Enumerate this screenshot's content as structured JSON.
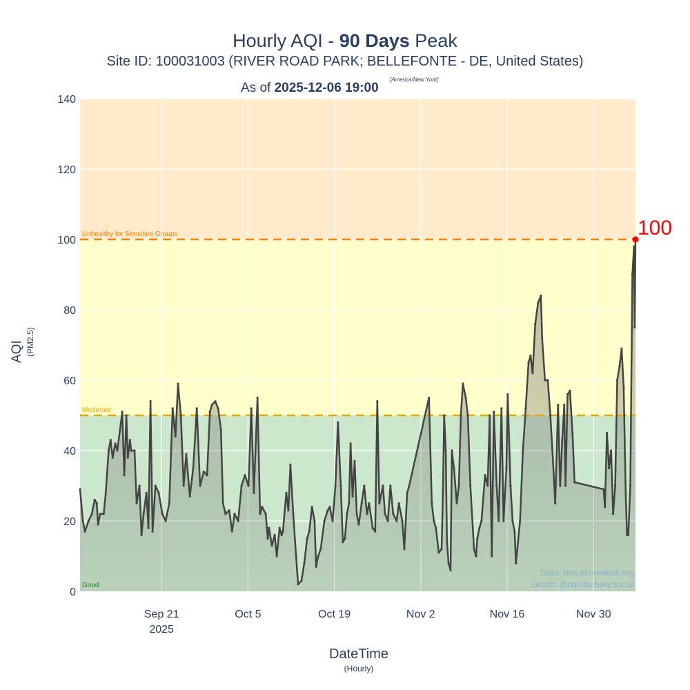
{
  "title": {
    "prefix": "Hourly AQI - ",
    "bold": "90 Days",
    "suffix": " Peak"
  },
  "subtitle": "Site ID: 100031003 (RIVER ROAD PARK; BELLEFONTE - DE, United States)",
  "as_of": {
    "prefix": "As of ",
    "datetime": "2025-12-06 19:00",
    "timezone": "[America/New York]"
  },
  "credits": {
    "data": "Data: files.airnowtech.org",
    "graph": "Graph: @aqiobs.bsky.social"
  },
  "colors": {
    "line": "#444444",
    "good_band": "#cce8cc",
    "moderate_band": "#ffffcc",
    "usg_band": "#ffebcc",
    "moderate_line": "#e0a800",
    "usg_line": "#ff8000",
    "good_text": "#1a8a1a",
    "peak": "#ff0000",
    "credit": "#8ab0cc"
  },
  "chart_data": {
    "type": "line",
    "fill": "area",
    "markers": true,
    "xlabel": "DateTime",
    "xlabel_sub": "(Hourly)",
    "ylabel": "AQI",
    "ylabel_sub": "(PM2.5)",
    "xlim": [
      "2025-09-07 19:00",
      "2025-12-06 19:00"
    ],
    "ylim": [
      0,
      140
    ],
    "yticks": [
      0,
      20,
      40,
      60,
      80,
      100,
      120,
      140
    ],
    "xticks": [
      {
        "date": "2025-09-21 00:00",
        "label": "Sep 21",
        "label2": "2025"
      },
      {
        "date": "2025-10-05 00:00",
        "label": "Oct 5"
      },
      {
        "date": "2025-10-19 00:00",
        "label": "Oct 19"
      },
      {
        "date": "2025-11-02 00:00",
        "label": "Nov 2"
      },
      {
        "date": "2025-11-16 00:00",
        "label": "Nov 16"
      },
      {
        "date": "2025-11-30 00:00",
        "label": "Nov 30"
      }
    ],
    "grid": true,
    "bands": [
      {
        "name": "Good",
        "from": 0,
        "to": 50,
        "color": "#cce8cc"
      },
      {
        "name": "Moderate",
        "from": 50,
        "to": 100,
        "color": "#ffffcc"
      },
      {
        "name": "Unhealthy for Sensitive Groups",
        "from": 100,
        "to": 140,
        "color": "#ffebcc"
      }
    ],
    "thresholds": [
      {
        "value": 50,
        "label": "Moderate",
        "color": "#e0a800"
      },
      {
        "value": 100,
        "label": "Unhealthy for Sensitive Groups",
        "color": "#ff8000"
      }
    ],
    "band_label_good": "Good",
    "peak": {
      "date": "2025-12-06 19:00",
      "value": 100,
      "label": "100"
    },
    "points": [
      [
        "2025-09-07 19:00",
        29
      ],
      [
        "2025-09-08 06:00",
        20
      ],
      [
        "2025-09-08 14:00",
        17
      ],
      [
        "2025-09-09 04:00",
        20
      ],
      [
        "2025-09-09 17:00",
        22
      ],
      [
        "2025-09-10 04:00",
        26
      ],
      [
        "2025-09-10 12:00",
        25
      ],
      [
        "2025-09-10 17:00",
        19
      ],
      [
        "2025-09-11 01:00",
        22
      ],
      [
        "2025-09-11 15:00",
        22
      ],
      [
        "2025-09-11 23:00",
        28
      ],
      [
        "2025-09-12 10:00",
        40
      ],
      [
        "2025-09-12 18:00",
        43
      ],
      [
        "2025-09-13 02:00",
        38
      ],
      [
        "2025-09-13 12:00",
        42
      ],
      [
        "2025-09-13 20:00",
        40
      ],
      [
        "2025-09-14 10:00",
        48
      ],
      [
        "2025-09-14 15:00",
        51
      ],
      [
        "2025-09-14 23:00",
        33
      ],
      [
        "2025-09-15 07:00",
        50
      ],
      [
        "2025-09-15 13:00",
        38
      ],
      [
        "2025-09-15 21:00",
        43
      ],
      [
        "2025-09-16 02:00",
        40
      ],
      [
        "2025-09-16 15:00",
        40
      ],
      [
        "2025-09-16 23:00",
        25
      ],
      [
        "2025-09-17 10:00",
        30
      ],
      [
        "2025-09-17 18:00",
        16
      ],
      [
        "2025-09-18 02:00",
        22
      ],
      [
        "2025-09-18 13:00",
        28
      ],
      [
        "2025-09-18 21:00",
        18
      ],
      [
        "2025-09-19 05:00",
        54
      ],
      [
        "2025-09-19 13:00",
        17
      ],
      [
        "2025-09-20 00:00",
        30
      ],
      [
        "2025-09-20 13:00",
        28
      ],
      [
        "2025-09-21 03:00",
        22
      ],
      [
        "2025-09-21 16:00",
        20
      ],
      [
        "2025-09-22 06:00",
        25
      ],
      [
        "2025-09-22 19:00",
        52
      ],
      [
        "2025-09-23 06:00",
        44
      ],
      [
        "2025-09-23 16:00",
        59
      ],
      [
        "2025-09-24 03:00",
        50
      ],
      [
        "2025-09-24 14:00",
        30
      ],
      [
        "2025-09-25 00:00",
        39
      ],
      [
        "2025-09-25 14:00",
        27
      ],
      [
        "2025-09-26 03:00",
        35
      ],
      [
        "2025-09-26 17:00",
        52
      ],
      [
        "2025-09-27 06:00",
        30
      ],
      [
        "2025-09-27 20:00",
        34
      ],
      [
        "2025-09-28 09:00",
        33
      ],
      [
        "2025-09-28 20:00",
        51
      ],
      [
        "2025-09-29 04:00",
        53
      ],
      [
        "2025-09-29 17:00",
        54
      ],
      [
        "2025-09-30 04:00",
        52
      ],
      [
        "2025-09-30 15:00",
        46
      ],
      [
        "2025-09-30 23:00",
        25
      ],
      [
        "2025-10-01 09:00",
        22
      ],
      [
        "2025-10-01 23:00",
        23
      ],
      [
        "2025-10-02 10:00",
        17
      ],
      [
        "2025-10-02 20:00",
        22
      ],
      [
        "2025-10-03 10:00",
        20
      ],
      [
        "2025-10-03 23:00",
        30
      ],
      [
        "2025-10-04 12:00",
        33
      ],
      [
        "2025-10-05 02:00",
        30
      ],
      [
        "2025-10-05 13:00",
        52
      ],
      [
        "2025-10-05 23:00",
        28
      ],
      [
        "2025-10-06 13:00",
        55
      ],
      [
        "2025-10-06 23:00",
        22
      ],
      [
        "2025-10-07 07:00",
        24
      ],
      [
        "2025-10-07 21:00",
        22
      ],
      [
        "2025-10-08 05:00",
        15
      ],
      [
        "2025-10-08 10:00",
        18
      ],
      [
        "2025-10-08 21:00",
        13
      ],
      [
        "2025-10-09 08:00",
        16
      ],
      [
        "2025-10-09 16:00",
        10
      ],
      [
        "2025-10-10 03:00",
        18
      ],
      [
        "2025-10-10 11:00",
        16
      ],
      [
        "2025-10-10 16:00",
        17
      ],
      [
        "2025-10-11 05:00",
        28
      ],
      [
        "2025-10-11 13:00",
        23
      ],
      [
        "2025-10-11 21:00",
        36
      ],
      [
        "2025-10-12 08:00",
        22
      ],
      [
        "2025-10-12 19:00",
        10
      ],
      [
        "2025-10-13 03:00",
        2
      ],
      [
        "2025-10-13 16:00",
        3
      ],
      [
        "2025-10-14 03:00",
        8
      ],
      [
        "2025-10-14 14:00",
        15
      ],
      [
        "2025-10-14 22:00",
        17
      ],
      [
        "2025-10-15 09:00",
        24
      ],
      [
        "2025-10-15 19:00",
        20
      ],
      [
        "2025-10-16 01:00",
        7
      ],
      [
        "2025-10-16 09:00",
        10
      ],
      [
        "2025-10-16 19:00",
        12
      ],
      [
        "2025-10-17 09:00",
        20
      ],
      [
        "2025-10-17 22:00",
        23
      ],
      [
        "2025-10-18 06:00",
        24
      ],
      [
        "2025-10-18 17:00",
        20
      ],
      [
        "2025-10-19 04:00",
        30
      ],
      [
        "2025-10-19 14:00",
        48
      ],
      [
        "2025-10-20 01:00",
        30
      ],
      [
        "2025-10-20 09:00",
        14
      ],
      [
        "2025-10-20 17:00",
        15
      ],
      [
        "2025-10-21 01:00",
        22
      ],
      [
        "2025-10-21 09:00",
        25
      ],
      [
        "2025-10-21 15:00",
        42
      ],
      [
        "2025-10-21 23:00",
        27
      ],
      [
        "2025-10-22 07:00",
        37
      ],
      [
        "2025-10-22 15:00",
        22
      ],
      [
        "2025-10-22 23:00",
        19
      ],
      [
        "2025-10-23 10:00",
        25
      ],
      [
        "2025-10-23 20:00",
        30
      ],
      [
        "2025-10-24 07:00",
        22
      ],
      [
        "2025-10-24 15:00",
        25
      ],
      [
        "2025-10-25 05:00",
        18
      ],
      [
        "2025-10-25 15:00",
        17
      ],
      [
        "2025-10-25 23:00",
        54
      ],
      [
        "2025-10-26 07:00",
        25
      ],
      [
        "2025-10-26 21:00",
        30
      ],
      [
        "2025-10-27 05:00",
        22
      ],
      [
        "2025-10-27 16:00",
        20
      ],
      [
        "2025-10-28 02:00",
        30
      ],
      [
        "2025-10-28 13:00",
        22
      ],
      [
        "2025-10-29 02:00",
        20
      ],
      [
        "2025-10-29 11:00",
        25
      ],
      [
        "2025-10-30 00:00",
        20
      ],
      [
        "2025-10-30 08:00",
        12
      ],
      [
        "2025-10-30 19:00",
        28
      ],
      [
        "2025-10-31 03:00",
        30
      ],
      [
        "2025-11-03 08:00",
        55
      ],
      [
        "2025-11-03 19:00",
        25
      ],
      [
        "2025-11-04 03:00",
        20
      ],
      [
        "2025-11-04 11:00",
        18
      ],
      [
        "2025-11-04 22:00",
        11
      ],
      [
        "2025-11-05 09:00",
        12
      ],
      [
        "2025-11-05 14:00",
        28
      ],
      [
        "2025-11-05 19:00",
        50
      ],
      [
        "2025-11-06 01:00",
        40
      ],
      [
        "2025-11-06 06:00",
        14
      ],
      [
        "2025-11-06 12:00",
        8
      ],
      [
        "2025-11-06 20:00",
        6
      ],
      [
        "2025-11-07 01:00",
        40
      ],
      [
        "2025-11-07 09:00",
        35
      ],
      [
        "2025-11-07 20:00",
        25
      ],
      [
        "2025-11-08 04:00",
        30
      ],
      [
        "2025-11-08 12:00",
        50
      ],
      [
        "2025-11-08 20:00",
        59
      ],
      [
        "2025-11-09 07:00",
        55
      ],
      [
        "2025-11-09 15:00",
        50
      ],
      [
        "2025-11-10 01:00",
        30
      ],
      [
        "2025-11-10 15:00",
        12
      ],
      [
        "2025-11-10 23:00",
        10
      ],
      [
        "2025-11-11 04:00",
        15
      ],
      [
        "2025-11-11 12:00",
        18
      ],
      [
        "2025-11-11 20:00",
        20
      ],
      [
        "2025-11-12 10:00",
        33
      ],
      [
        "2025-11-12 20:00",
        30
      ],
      [
        "2025-11-13 04:00",
        50
      ],
      [
        "2025-11-13 12:00",
        10
      ],
      [
        "2025-11-13 20:00",
        51
      ],
      [
        "2025-11-14 07:00",
        30
      ],
      [
        "2025-11-14 15:00",
        20
      ],
      [
        "2025-11-15 02:00",
        52
      ],
      [
        "2025-11-15 10:00",
        20
      ],
      [
        "2025-11-15 21:00",
        35
      ],
      [
        "2025-11-16 02:00",
        56
      ],
      [
        "2025-11-16 13:00",
        30
      ],
      [
        "2025-11-16 21:00",
        20
      ],
      [
        "2025-11-17 05:00",
        17
      ],
      [
        "2025-11-17 10:00",
        8
      ],
      [
        "2025-11-17 18:00",
        14
      ],
      [
        "2025-11-18 02:00",
        20
      ],
      [
        "2025-11-18 13:00",
        40
      ],
      [
        "2025-11-19 00:00",
        52
      ],
      [
        "2025-11-19 11:00",
        65
      ],
      [
        "2025-11-19 19:00",
        67
      ],
      [
        "2025-11-20 03:00",
        62
      ],
      [
        "2025-11-20 13:00",
        76
      ],
      [
        "2025-11-21 00:00",
        82
      ],
      [
        "2025-11-21 11:00",
        84
      ],
      [
        "2025-11-21 16:00",
        72
      ],
      [
        "2025-11-22 03:00",
        60
      ],
      [
        "2025-11-22 14:00",
        60
      ],
      [
        "2025-11-23 00:00",
        50
      ],
      [
        "2025-11-23 08:00",
        40
      ],
      [
        "2025-11-23 19:00",
        25
      ],
      [
        "2025-11-24 06:00",
        53
      ],
      [
        "2025-11-24 14:00",
        30
      ],
      [
        "2025-11-24 22:00",
        43
      ],
      [
        "2025-11-25 06:00",
        53
      ],
      [
        "2025-11-25 11:00",
        30
      ],
      [
        "2025-11-25 19:00",
        56
      ],
      [
        "2025-11-26 04:00",
        57
      ],
      [
        "2025-11-26 14:00",
        45
      ],
      [
        "2025-11-26 22:00",
        31
      ],
      [
        "2025-12-01 15:00",
        29
      ],
      [
        "2025-12-01 20:00",
        24
      ],
      [
        "2025-12-02 04:00",
        45
      ],
      [
        "2025-12-02 12:00",
        35
      ],
      [
        "2025-12-02 20:00",
        40
      ],
      [
        "2025-12-03 04:00",
        22
      ],
      [
        "2025-12-03 12:00",
        30
      ],
      [
        "2025-12-03 20:00",
        60
      ],
      [
        "2025-12-04 05:00",
        64
      ],
      [
        "2025-12-04 13:00",
        69
      ],
      [
        "2025-12-04 21:00",
        58
      ],
      [
        "2025-12-05 05:00",
        28
      ],
      [
        "2025-12-05 10:00",
        16
      ],
      [
        "2025-12-05 15:00",
        16
      ],
      [
        "2025-12-05 23:00",
        30
      ],
      [
        "2025-12-06 07:00",
        90
      ],
      [
        "2025-12-06 13:00",
        98
      ],
      [
        "2025-12-06 16:00",
        75
      ],
      [
        "2025-12-06 19:00",
        100
      ]
    ]
  }
}
